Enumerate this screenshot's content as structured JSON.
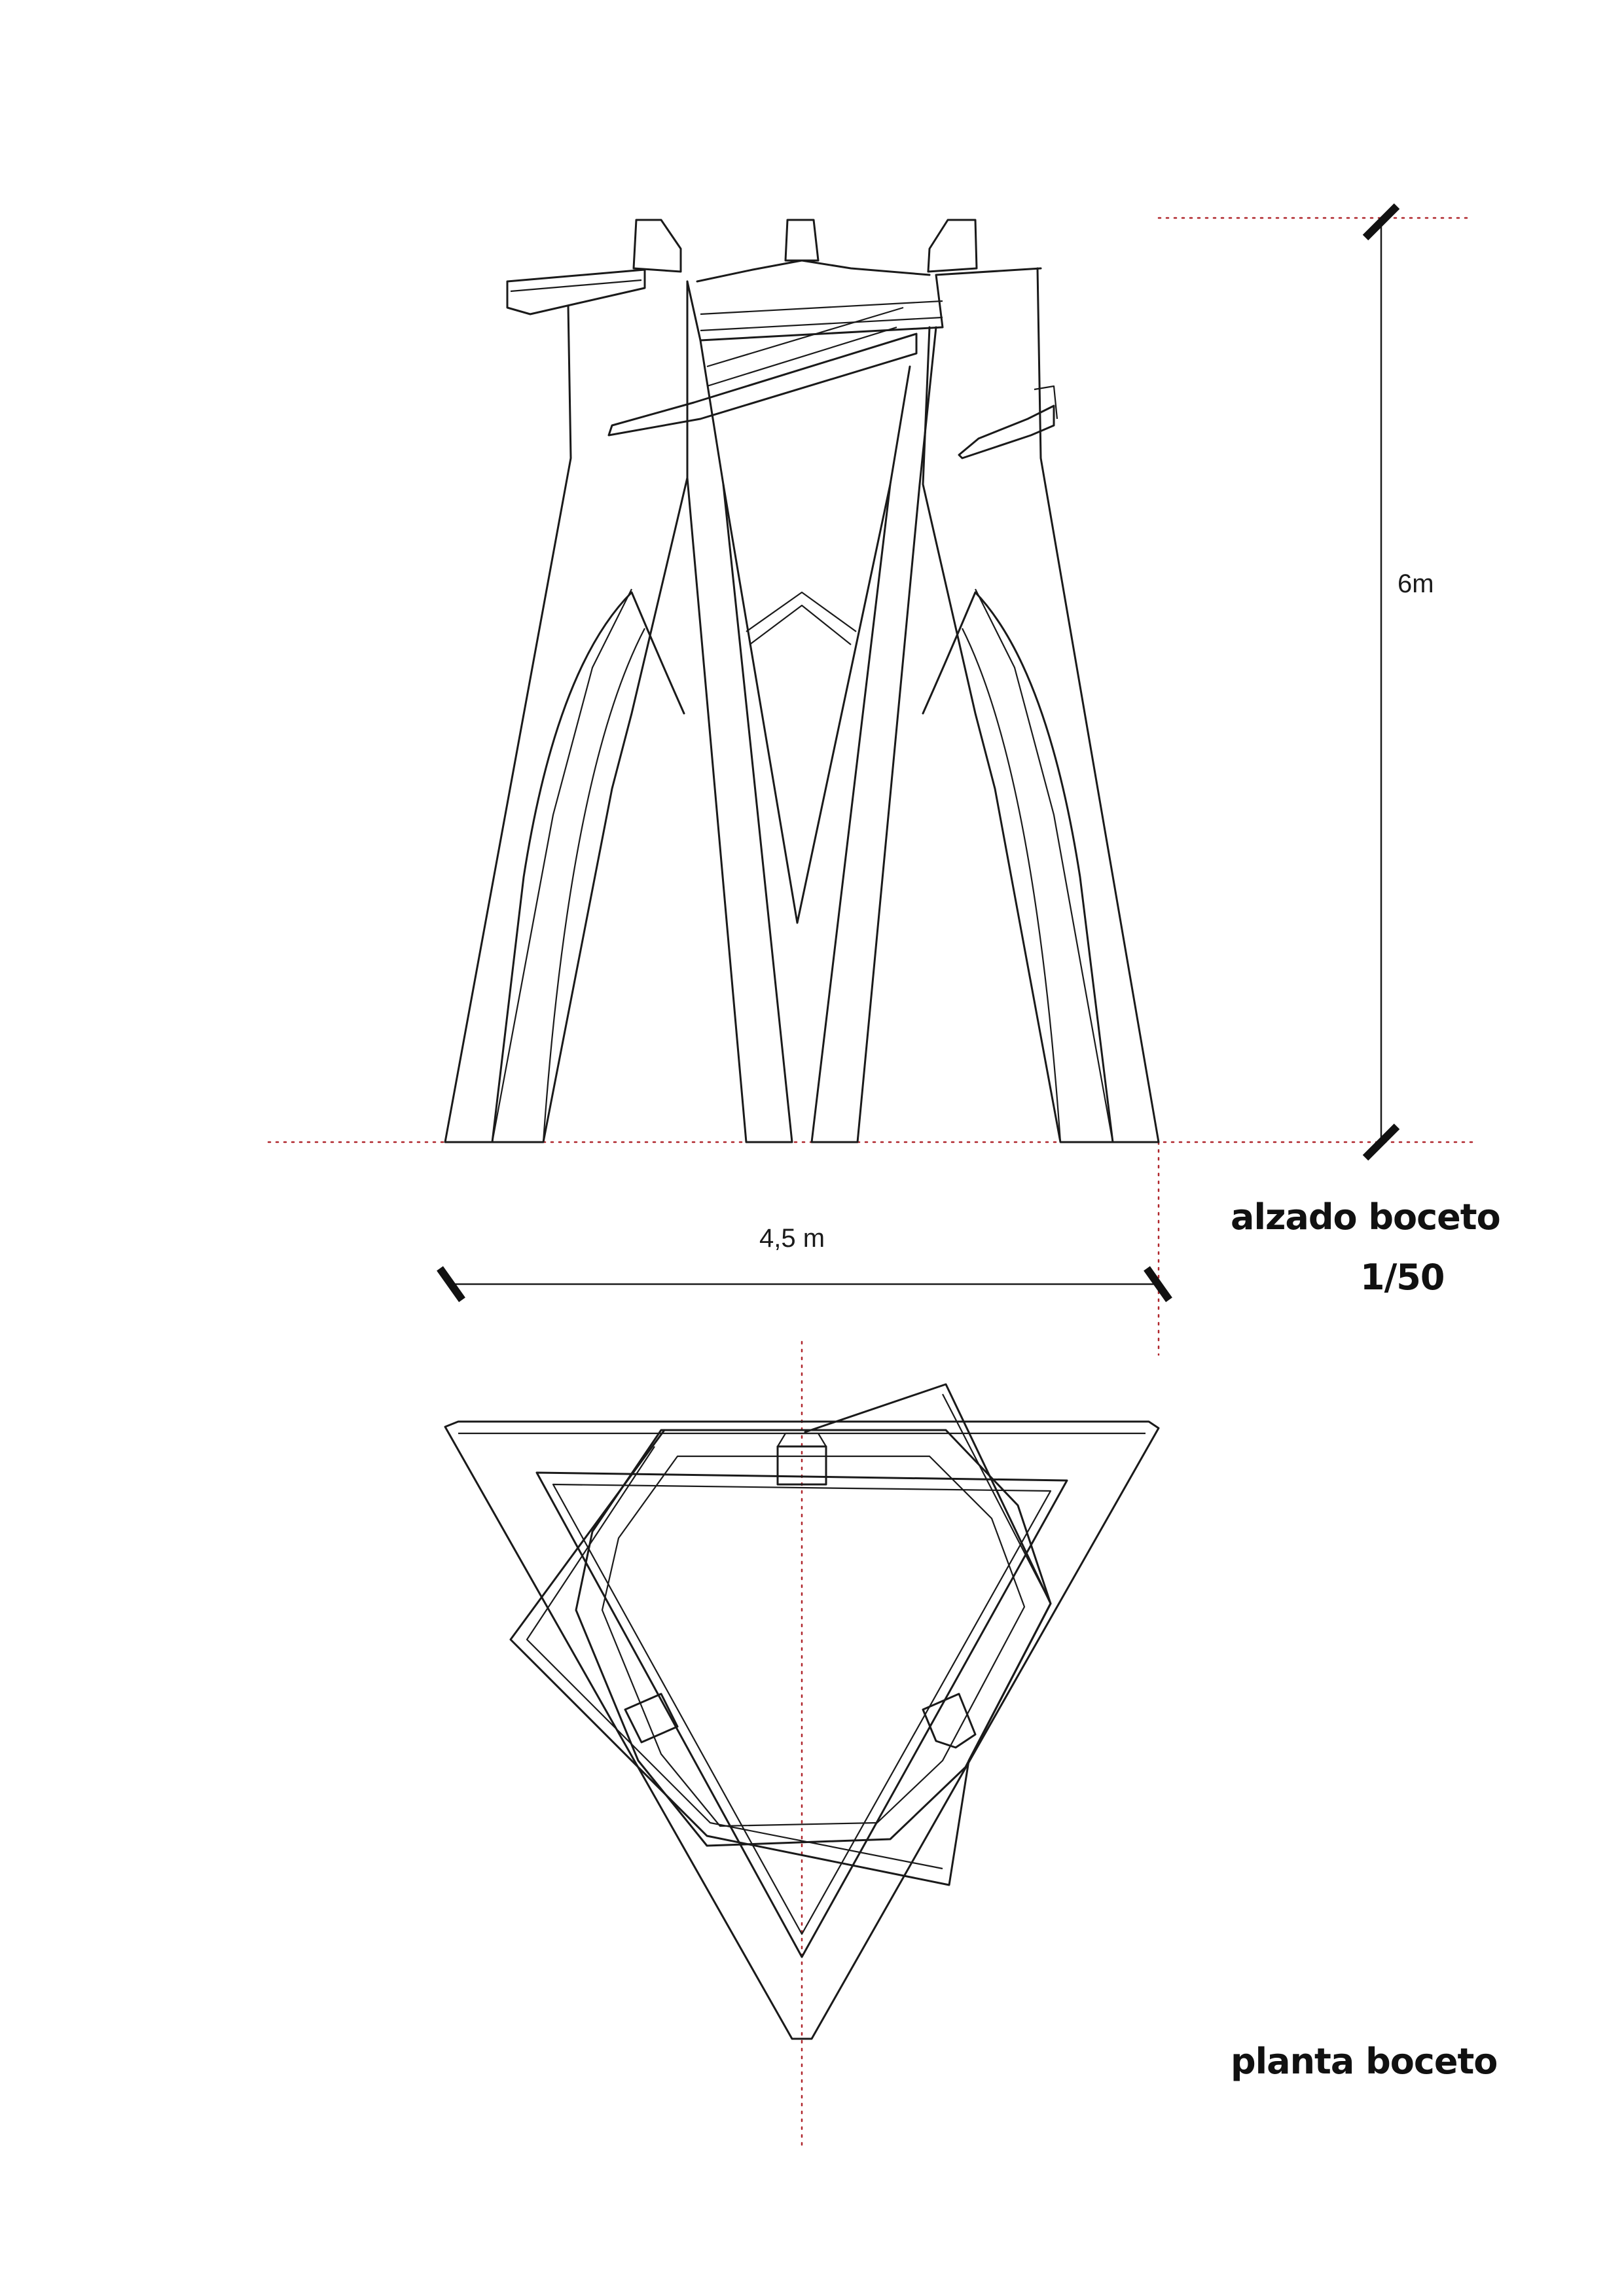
{
  "elevation": {
    "title": "alzado boceto",
    "scale": "1/50",
    "height_label": "6m",
    "width_label": "4,5 m"
  },
  "plan": {
    "title": "planta boceto"
  },
  "colors": {
    "linework": "#1a1a1a",
    "reference_lines": "#b0272d"
  }
}
